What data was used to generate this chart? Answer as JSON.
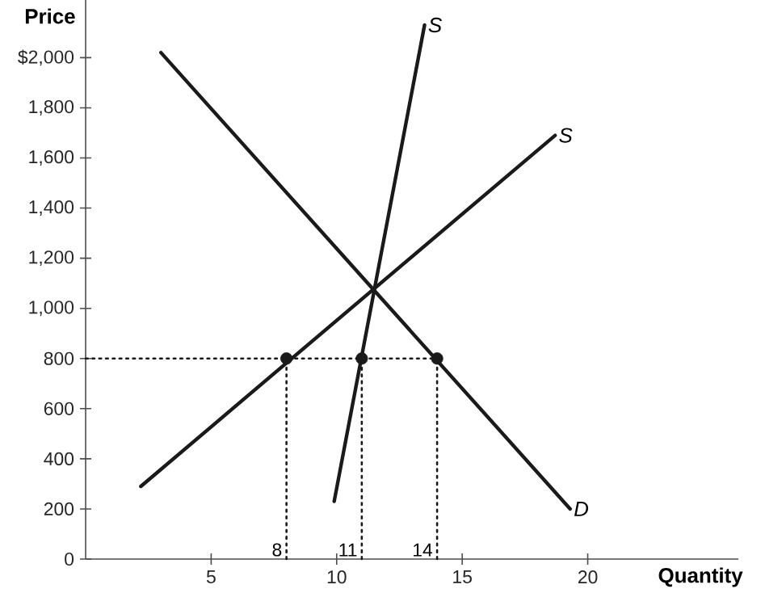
{
  "chart_data": {
    "type": "line",
    "xlabel": "Quantity",
    "ylabel": "Price",
    "xlim": [
      0,
      26
    ],
    "ylim": [
      0,
      2230
    ],
    "xticks": [
      5,
      10,
      15,
      20
    ],
    "yticks": [
      0,
      {
        "value": 200,
        "label": "200"
      },
      {
        "value": 400,
        "label": "400"
      },
      {
        "value": 600,
        "label": "600"
      },
      {
        "value": 800,
        "label": "800"
      },
      {
        "value": 1000,
        "label": "1,000"
      },
      {
        "value": 1200,
        "label": "1,200"
      },
      {
        "value": 1400,
        "label": "1,400"
      },
      {
        "value": 1600,
        "label": "1,600"
      },
      {
        "value": 1800,
        "label": "1,800"
      },
      {
        "value": 2000,
        "label": "$2,000"
      }
    ],
    "grid": false,
    "legend": false,
    "series": [
      {
        "line_style": "dotted",
        "marker": "none",
        "color": "#1a1a1a",
        "x": [
          0,
          14
        ],
        "values": [
          800,
          800
        ]
      },
      {
        "line_style": "dotted",
        "marker": "none",
        "color": "#1a1a1a",
        "x": [
          8,
          8
        ],
        "values": [
          0,
          800
        ]
      },
      {
        "line_style": "dotted",
        "marker": "none",
        "color": "#1a1a1a",
        "x": [
          11,
          11
        ],
        "values": [
          0,
          800
        ]
      },
      {
        "line_style": "dotted",
        "marker": "none",
        "color": "#1a1a1a",
        "x": [
          14,
          14
        ],
        "values": [
          0,
          800
        ]
      },
      {
        "name": "S",
        "line_style": "solid",
        "marker": "none",
        "color": "#1a1a1a",
        "x": [
          9.9,
          13.5
        ],
        "values": [
          230,
          2130
        ]
      },
      {
        "name": "S",
        "line_style": "solid",
        "marker": "none",
        "color": "#1a1a1a",
        "x": [
          2.2,
          18.7
        ],
        "values": [
          290,
          1690
        ]
      },
      {
        "name": "D",
        "line_style": "solid",
        "marker": "none",
        "color": "#1a1a1a",
        "x": [
          3,
          19.3
        ],
        "values": [
          2020,
          200
        ]
      },
      {
        "type": "scatter",
        "marker": "circle",
        "color": "#1a1a1a",
        "x": [
          8,
          11,
          14
        ],
        "values": [
          800,
          800,
          800
        ]
      }
    ],
    "annotations": [
      {
        "text": "8",
        "x": 8,
        "y": 0
      },
      {
        "text": "11",
        "x": 11,
        "y": 0
      },
      {
        "text": "14",
        "x": 14,
        "y": 0
      }
    ]
  }
}
